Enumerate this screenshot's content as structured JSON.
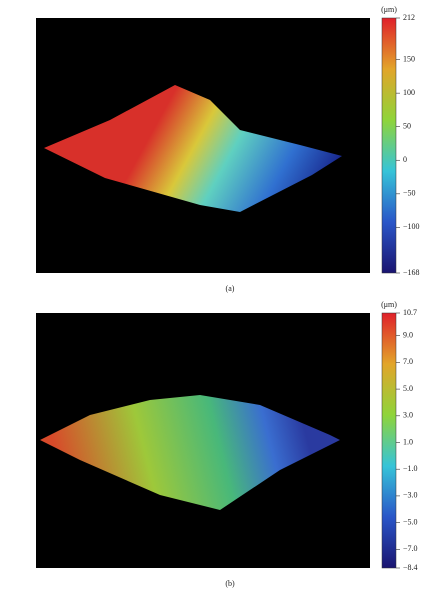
{
  "panels": [
    {
      "unit": "(μm)",
      "cbar_lim": [
        -168,
        212
      ],
      "ticks": [
        212,
        150,
        100,
        50,
        0,
        {
          "value": -50,
          "label": "−50"
        },
        {
          "value": -100,
          "label": "−100"
        },
        {
          "value": -168,
          "label": "−168"
        }
      ],
      "caption": "(a)"
    },
    {
      "unit": "(μm)",
      "cbar_lim": [
        -8.4,
        10.7
      ],
      "ticks": [
        {
          "value": 10.7,
          "label": "10.7"
        },
        {
          "value": 9,
          "label": "9.0"
        },
        {
          "value": 7,
          "label": "7.0"
        },
        {
          "value": 5,
          "label": "5.0"
        },
        {
          "value": 3,
          "label": "3.0"
        },
        {
          "value": 1,
          "label": "1.0"
        },
        {
          "value": -1,
          "label": "−1.0"
        },
        {
          "value": -3,
          "label": "−3.0"
        },
        {
          "value": -5,
          "label": "−5.0"
        },
        {
          "value": -7,
          "label": "−7.0"
        },
        {
          "value": -8.4,
          "label": "−8.4"
        }
      ],
      "caption": "(b)"
    }
  ]
}
